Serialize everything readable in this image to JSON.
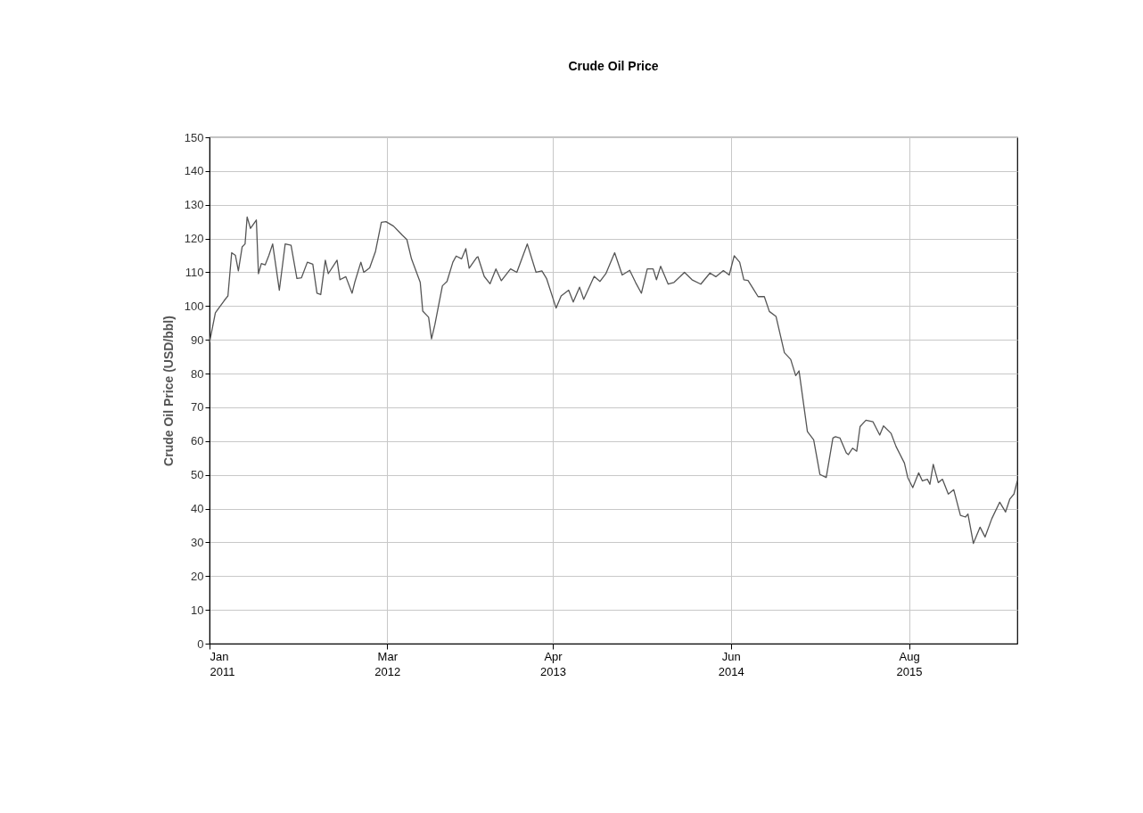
{
  "chart_data": {
    "type": "line",
    "title": "Crude Oil Price",
    "ylabel": "Crude Oil Price (USD/bbl)",
    "xlim": [
      "2011-01-01",
      "2016-04-16"
    ],
    "ylim": [
      0,
      150
    ],
    "yticks": [
      0,
      10,
      20,
      30,
      40,
      50,
      60,
      70,
      80,
      90,
      100,
      110,
      120,
      130,
      140,
      150
    ],
    "xticks": [
      {
        "value": "2011-01-01",
        "label": "Jan\n2011"
      },
      {
        "value": "2012-03-01",
        "label": "Mar\n2012"
      },
      {
        "value": "2013-04-01",
        "label": "Apr\n2013"
      },
      {
        "value": "2014-06-01",
        "label": "Jun\n2014"
      },
      {
        "value": "2015-08-01",
        "label": "Aug\n2015"
      }
    ],
    "grid": true,
    "line_style": "solid",
    "series": [
      {
        "color": "#555555",
        "x": [
          "2011-01-01",
          "2011-01-15",
          "2011-02-05",
          "2011-02-14",
          "2011-02-23",
          "2011-03-04",
          "2011-03-11",
          "2011-03-20",
          "2011-03-27",
          "2011-04-01",
          "2011-04-09",
          "2011-04-23",
          "2011-04-28",
          "2011-05-05",
          "2011-05-14",
          "2011-05-23",
          "2011-06-01",
          "2011-06-17",
          "2011-07-01",
          "2011-07-15",
          "2011-07-29",
          "2011-08-09",
          "2011-08-23",
          "2011-09-05",
          "2011-09-15",
          "2011-09-24",
          "2011-10-05",
          "2011-10-12",
          "2011-11-02",
          "2011-11-09",
          "2011-11-23",
          "2011-12-08",
          "2011-12-15",
          "2011-12-29",
          "2012-01-05",
          "2012-01-19",
          "2012-02-02",
          "2012-02-16",
          "2012-02-27",
          "2012-03-16",
          "2012-04-06",
          "2012-04-17",
          "2012-04-28",
          "2012-05-19",
          "2012-05-25",
          "2012-06-08",
          "2012-06-15",
          "2012-06-23",
          "2012-07-11",
          "2012-07-22",
          "2012-08-05",
          "2012-08-13",
          "2012-08-26",
          "2012-09-05",
          "2012-09-13",
          "2012-10-01",
          "2012-10-04",
          "2012-10-19",
          "2012-11-02",
          "2012-11-16",
          "2012-11-29",
          "2012-12-21",
          "2013-01-05",
          "2013-01-30",
          "2013-02-20",
          "2013-03-06",
          "2013-03-17",
          "2013-04-09",
          "2013-04-21",
          "2013-05-09",
          "2013-05-20",
          "2013-06-04",
          "2013-06-14",
          "2013-07-09",
          "2013-07-23",
          "2013-08-06",
          "2013-08-27",
          "2013-09-14",
          "2013-10-02",
          "2013-10-16",
          "2013-10-30",
          "2013-11-13",
          "2013-11-27",
          "2013-12-05",
          "2013-12-15",
          "2014-01-02",
          "2014-01-16",
          "2014-02-10",
          "2014-02-28",
          "2014-03-21",
          "2014-04-12",
          "2014-04-26",
          "2014-05-14",
          "2014-05-28",
          "2014-06-09",
          "2014-06-22",
          "2014-07-02",
          "2014-07-12",
          "2014-07-24",
          "2014-08-05",
          "2014-08-20",
          "2014-09-01",
          "2014-09-17",
          "2014-10-07",
          "2014-10-22",
          "2014-11-03",
          "2014-11-11",
          "2014-12-01",
          "2014-12-16",
          "2014-12-31",
          "2015-01-15",
          "2015-01-31",
          "2015-02-06",
          "2015-02-17",
          "2015-03-04",
          "2015-03-09",
          "2015-03-19",
          "2015-03-29",
          "2015-04-06",
          "2015-04-20",
          "2015-05-07",
          "2015-05-23",
          "2015-06-01",
          "2015-06-19",
          "2015-07-01",
          "2015-07-21",
          "2015-07-29",
          "2015-08-10",
          "2015-08-24",
          "2015-09-02",
          "2015-09-14",
          "2015-09-20",
          "2015-09-28",
          "2015-10-10",
          "2015-10-20",
          "2015-11-03",
          "2015-11-16",
          "2015-12-02",
          "2015-12-14",
          "2015-12-20",
          "2016-01-02",
          "2016-01-18",
          "2016-01-30",
          "2016-02-15",
          "2016-03-05",
          "2016-03-19",
          "2016-03-29",
          "2016-04-08",
          "2016-04-16"
        ],
        "values": [
          89.2,
          98,
          101.6,
          103,
          115.8,
          115,
          110.4,
          117.5,
          118.4,
          126.4,
          123,
          125.5,
          109.6,
          112.6,
          112.2,
          115,
          118.4,
          104.7,
          118.4,
          118,
          108.2,
          108.4,
          113,
          112.4,
          103.8,
          103.4,
          113.6,
          109.6,
          113.6,
          107.8,
          108.7,
          103.8,
          107.3,
          113,
          110,
          111.3,
          116.2,
          124.8,
          125,
          123.7,
          121,
          119.7,
          114,
          107,
          98.5,
          96.7,
          90.3,
          94.5,
          106,
          107.3,
          113,
          114.8,
          114,
          117,
          111.2,
          114.4,
          114.6,
          108.8,
          106.6,
          111,
          107.5,
          111,
          110,
          118.4,
          110,
          110.4,
          108.2,
          99.4,
          103,
          104.7,
          101.2,
          105.6,
          102,
          108.8,
          107.3,
          109.6,
          115.8,
          109.2,
          110.6,
          107,
          103.8,
          111,
          111,
          107.8,
          111.8,
          106.5,
          107,
          110,
          107.8,
          106.5,
          109.8,
          108.7,
          110.5,
          109.2,
          114.9,
          113,
          107.8,
          107.6,
          105.2,
          102.8,
          102.8,
          98.4,
          96.9,
          86.2,
          84.2,
          79.4,
          80.8,
          62.8,
          60.4,
          50.1,
          49.2,
          60.9,
          61.3,
          60.9,
          56.5,
          56,
          57.9,
          57,
          64.3,
          66.2,
          65.7,
          61.8,
          64.5,
          62.3,
          58.4,
          53.5,
          49.2,
          46.2,
          50.6,
          48.2,
          48.7,
          47.2,
          53.1,
          47.7,
          48.7,
          44.3,
          45.6,
          38,
          37.5,
          38.4,
          29.7,
          34.5,
          31.6,
          37,
          41.9,
          39,
          42.8,
          44.3,
          48.2
        ]
      }
    ]
  }
}
